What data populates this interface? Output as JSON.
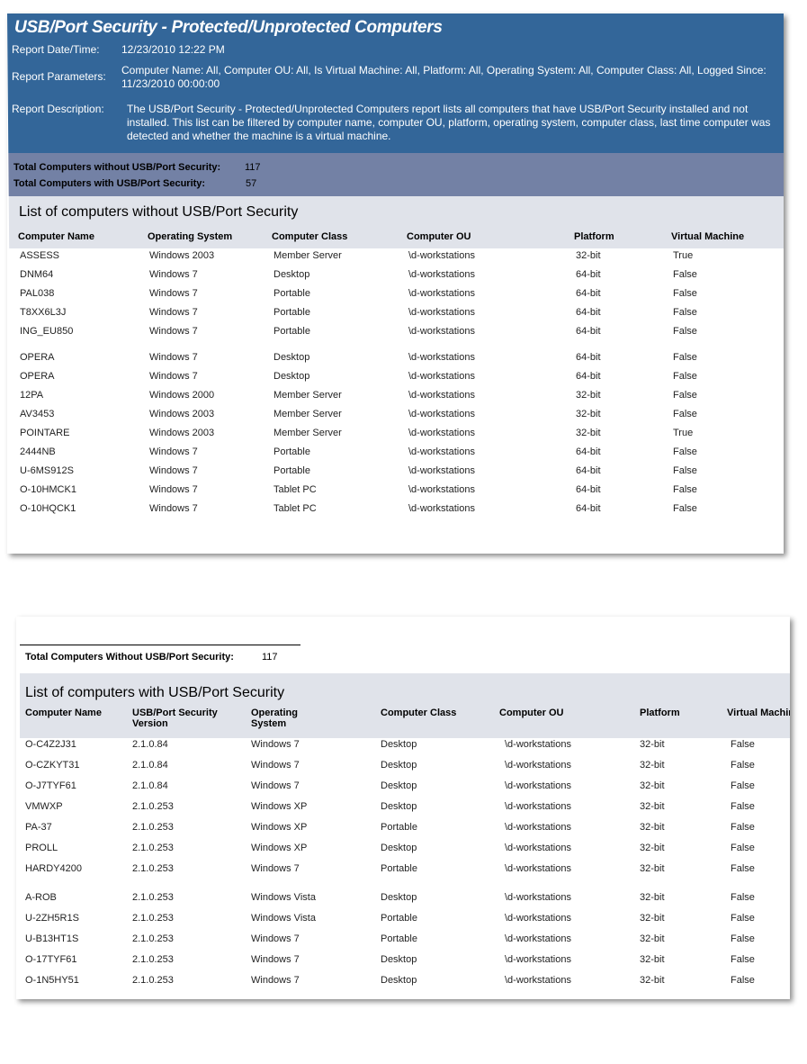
{
  "report": {
    "title": "USB/Port Security - Protected/Unprotected Computers",
    "date_label": "Report Date/Time:",
    "date_value": "12/23/2010 12:22 PM",
    "params_label": "Report Parameters:",
    "params_value": "Computer Name:  All, Computer OU:  All, Is Virtual Machine:  All, Platform:  All, Operating System:  All, Computer Class:  All, Logged Since:  11/23/2010 00:00:00",
    "desc_label": "Report Description:",
    "desc_value": "The USB/Port Security - Protected/Unprotected Computers report lists all computers that have USB/Port Security installed and not installed. This list can be filtered by computer name, computer OU, platform, operating system, computer class, last time computer was detected and whether the machine is a virtual machine."
  },
  "totals": {
    "without_label": "Total Computers without USB/Port Security:",
    "without_value": "117",
    "with_label": "Total Computers with USB/Port Security:",
    "with_value": "57"
  },
  "without_section": {
    "title": "List of computers without USB/Port Security",
    "columns": [
      "Computer Name",
      "Operating System",
      "Computer Class",
      "Computer OU",
      "Platform",
      "Virtual Machine"
    ],
    "rows": [
      [
        "ASSESS",
        "Windows 2003",
        "Member Server",
        "\\d-workstations",
        "32-bit",
        "True"
      ],
      [
        "DNM64",
        "Windows 7",
        "Desktop",
        "\\d-workstations",
        "64-bit",
        "False"
      ],
      [
        "PAL038",
        "Windows 7",
        "Portable",
        "\\d-workstations",
        "64-bit",
        "False"
      ],
      [
        "T8XX6L3J",
        "Windows 7",
        "Portable",
        "\\d-workstations",
        "64-bit",
        "False"
      ],
      [
        "ING_EU850",
        "Windows 7",
        "Portable",
        "\\d-workstations",
        "64-bit",
        "False"
      ],
      [
        "OPERA",
        "Windows 7",
        "Desktop",
        "\\d-workstations",
        "64-bit",
        "False"
      ],
      [
        "OPERA",
        "Windows 7",
        "Desktop",
        "\\d-workstations",
        "64-bit",
        "False"
      ],
      [
        "12PA",
        "Windows 2000",
        "Member Server",
        "\\d-workstations",
        "32-bit",
        "False"
      ],
      [
        "AV3453",
        "Windows 2003",
        "Member Server",
        "\\d-workstations",
        "32-bit",
        "False"
      ],
      [
        "POINTARE",
        "Windows 2003",
        "Member Server",
        "\\d-workstations",
        "32-bit",
        "True"
      ],
      [
        "2444NB",
        "Windows 7",
        "Portable",
        "\\d-workstations",
        "64-bit",
        "False"
      ],
      [
        "U-6MS912S",
        "Windows 7",
        "Portable",
        "\\d-workstations",
        "64-bit",
        "False"
      ],
      [
        "O-10HMCK1",
        "Windows 7",
        "Tablet PC",
        "\\d-workstations",
        "64-bit",
        "False"
      ],
      [
        "O-10HQCK1",
        "Windows 7",
        "Tablet PC",
        "\\d-workstations",
        "64-bit",
        "False"
      ]
    ]
  },
  "footer_total": {
    "label": "Total Computers Without USB/Port Security:",
    "value": "117"
  },
  "with_section": {
    "title": "List of computers with USB/Port Security",
    "columns": [
      "Computer Name",
      "USB/Port Security Version",
      "Operating System",
      "Computer Class",
      "Computer OU",
      "Platform",
      "Virtual Machine"
    ],
    "rows": [
      [
        "O-C4Z2J31",
        "2.1.0.84",
        "Windows 7",
        "Desktop",
        "\\d-workstations",
        "32-bit",
        "False"
      ],
      [
        "O-CZKYT31",
        "2.1.0.84",
        "Windows 7",
        "Desktop",
        "\\d-workstations",
        "32-bit",
        "False"
      ],
      [
        "O-J7TYF61",
        "2.1.0.84",
        "Windows 7",
        "Desktop",
        "\\d-workstations",
        "32-bit",
        "False"
      ],
      [
        "VMWXP",
        "2.1.0.253",
        "Windows XP",
        "Desktop",
        "\\d-workstations",
        "32-bit",
        "False"
      ],
      [
        "PA-37",
        "2.1.0.253",
        "Windows XP",
        "Portable",
        "\\d-workstations",
        "32-bit",
        "False"
      ],
      [
        "PROLL",
        "2.1.0.253",
        "Windows XP",
        "Desktop",
        "\\d-workstations",
        "32-bit",
        "False"
      ],
      [
        "HARDY4200",
        "2.1.0.253",
        "Windows 7",
        "Portable",
        "\\d-workstations",
        "32-bit",
        "False"
      ],
      [
        "A-ROB",
        "2.1.0.253",
        "Windows Vista",
        "Desktop",
        "\\d-workstations",
        "32-bit",
        "False"
      ],
      [
        "U-2ZH5R1S",
        "2.1.0.253",
        "Windows Vista",
        "Portable",
        "\\d-workstations",
        "32-bit",
        "False"
      ],
      [
        "U-B13HT1S",
        "2.1.0.253",
        "Windows 7",
        "Portable",
        "\\d-workstations",
        "32-bit",
        "False"
      ],
      [
        "O-17TYF61",
        "2.1.0.253",
        "Windows 7",
        "Desktop",
        "\\d-workstations",
        "32-bit",
        "False"
      ],
      [
        "O-1N5HY51",
        "2.1.0.253",
        "Windows 7",
        "Desktop",
        "\\d-workstations",
        "32-bit",
        "False"
      ]
    ]
  },
  "colors": {
    "header": "#336699",
    "totals_band": "#7381a5",
    "section_band": "#e0e3ea"
  }
}
